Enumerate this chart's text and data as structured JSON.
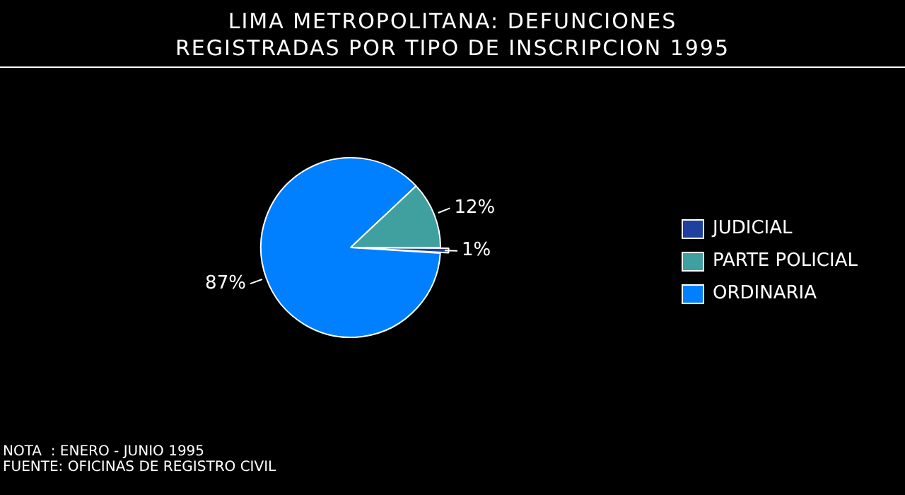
{
  "chart_data": {
    "type": "pie",
    "title": "LIMA METROPOLITANA: DEFUNCIONES\nREGISTRADAS POR TIPO DE INSCRIPCION 1995",
    "categories": [
      "JUDICIAL",
      "PARTE POLICIAL",
      "ORDINARIA"
    ],
    "values": [
      1,
      12,
      87
    ],
    "colors": [
      "#2040a0",
      "#40a0a0",
      "#0080ff"
    ],
    "value_labels": [
      "1%",
      "12%",
      "87%"
    ],
    "legend": "right",
    "annotations": [
      "NOTA  : ENERO - JUNIO 1995",
      "FUENTE: OFICINAS DE REGISTRO CIVIL"
    ]
  }
}
